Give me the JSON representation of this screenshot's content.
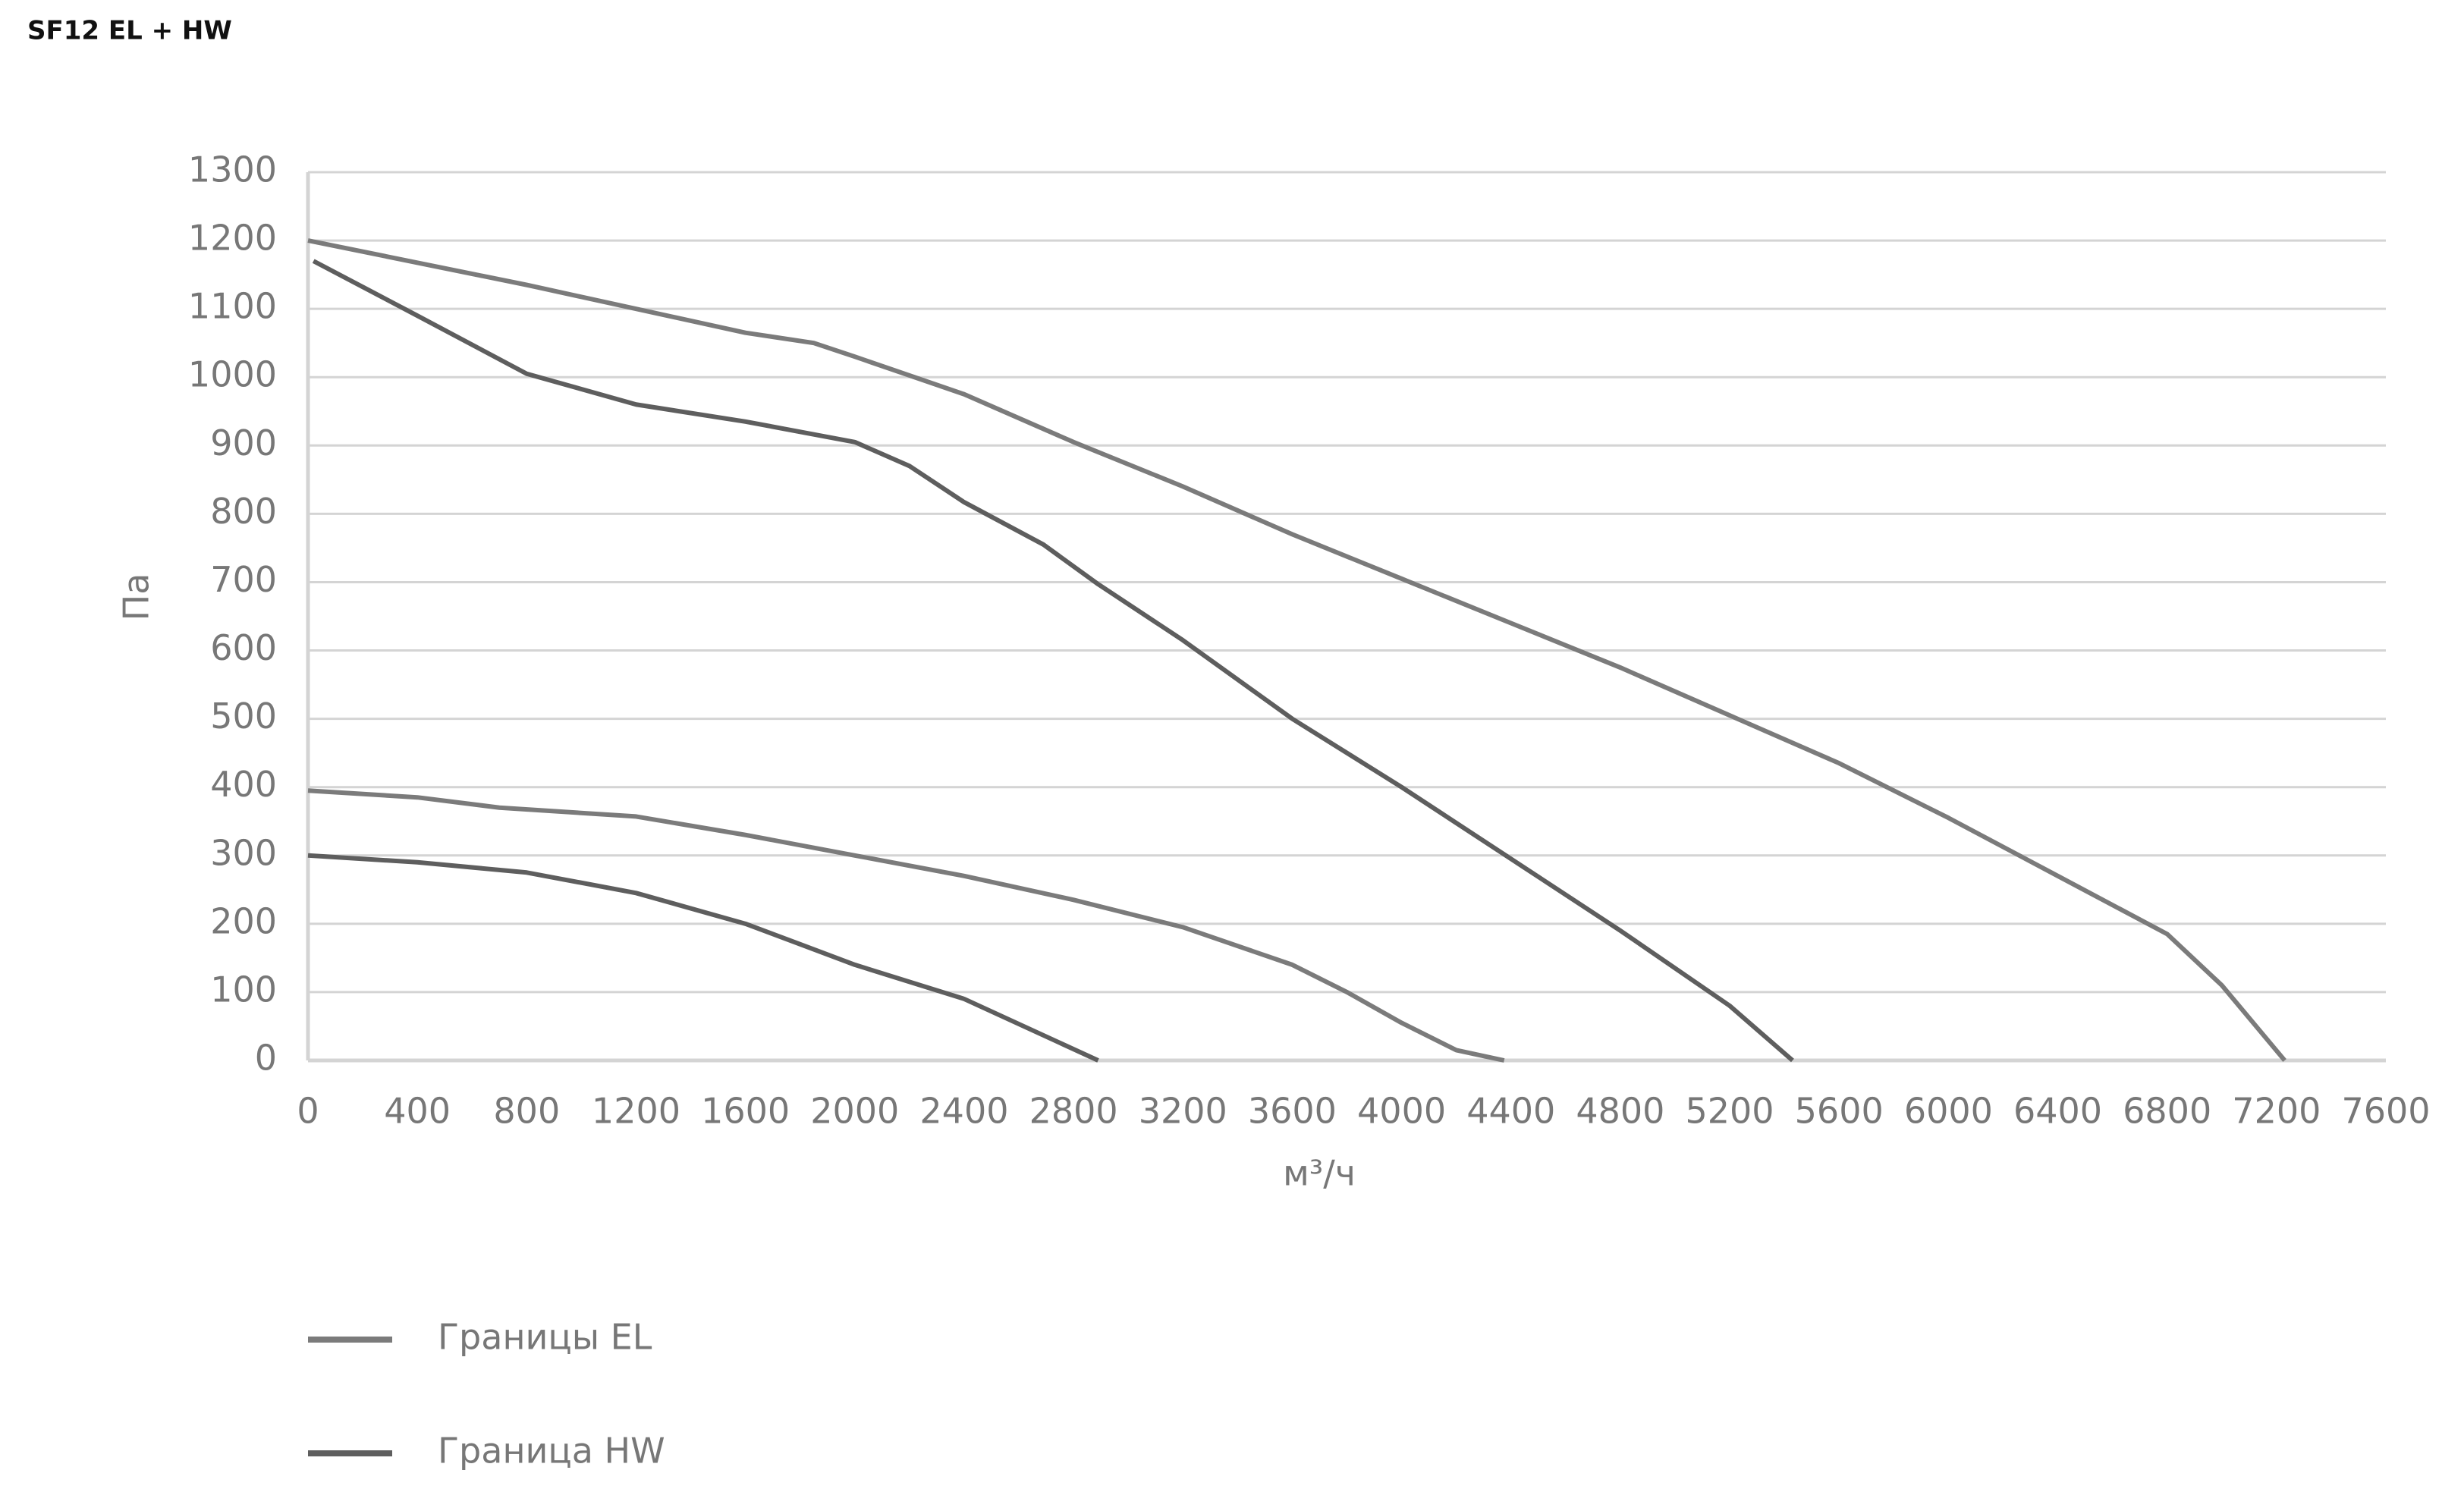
{
  "chart_data": {
    "type": "line",
    "title": "SF12 EL + HW",
    "x_label": "м³/ч",
    "y_label": "Па",
    "xlim": [
      0,
      7600
    ],
    "xticks": [
      0,
      400,
      800,
      1200,
      1600,
      2000,
      2400,
      2800,
      3200,
      3600,
      4000,
      4400,
      4800,
      5200,
      5600,
      6000,
      6400,
      6800,
      7200,
      7600
    ],
    "ylim": [
      0,
      1300
    ],
    "yticks": [
      0,
      100,
      200,
      300,
      400,
      500,
      600,
      700,
      800,
      900,
      1000,
      1100,
      1200,
      1300
    ],
    "grid": true,
    "legend": "bottom-left",
    "series": [
      {
        "name": "Границы EL",
        "color": "#7b7b7b",
        "x": [
          0,
          800,
          1600,
          1850,
          2000,
          2400,
          2800,
          3200,
          3600,
          4000,
          4400,
          4800,
          5200,
          5600,
          6000,
          6400,
          6800,
          7000,
          7230,
          null,
          0,
          400,
          700,
          1200,
          1600,
          2000,
          2400,
          2800,
          3200,
          3600,
          3800,
          4000,
          4200,
          4375
        ],
        "values": [
          1200,
          1135,
          1065,
          1050,
          1030,
          975,
          905,
          840,
          770,
          705,
          640,
          575,
          505,
          435,
          355,
          270,
          185,
          110,
          0,
          null,
          395,
          385,
          370,
          357,
          330,
          300,
          270,
          235,
          195,
          140,
          100,
          55,
          15,
          0
        ]
      },
      {
        "name": "Граница HW",
        "color": "#5e5e5e",
        "x": [
          20,
          400,
          800,
          1200,
          1600,
          2000,
          2200,
          2400,
          2690,
          2890,
          3200,
          3600,
          4000,
          4400,
          4800,
          5200,
          5430,
          null,
          0,
          400,
          800,
          1200,
          1600,
          1800,
          2000,
          2400,
          2890
        ],
        "values": [
          1170,
          1090,
          1005,
          960,
          935,
          905,
          870,
          817,
          755,
          697,
          615,
          500,
          400,
          295,
          190,
          80,
          0,
          null,
          300,
          290,
          275,
          245,
          200,
          170,
          140,
          90,
          0
        ]
      }
    ]
  }
}
